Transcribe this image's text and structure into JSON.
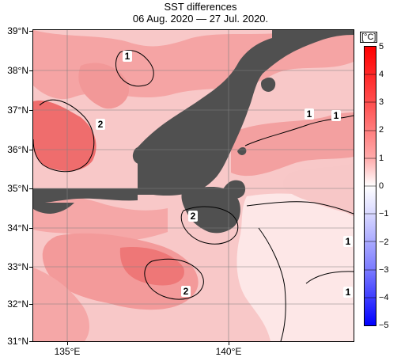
{
  "title": {
    "line1": "SST differences",
    "line2": "06 Aug. 2020 — 27 Jul. 2020."
  },
  "axes": {
    "latitude_labels": [
      "39°N",
      "38°N",
      "37°N",
      "36°N",
      "35°N",
      "34°N",
      "33°N",
      "32°N",
      "31°N"
    ],
    "longitude_labels": [
      "135°E",
      "140°E"
    ]
  },
  "colorbar": {
    "unit": "[°C]",
    "labels": [
      "5",
      "4",
      "3",
      "2",
      "1",
      "0",
      "−1",
      "−2",
      "−3",
      "−4",
      "−5"
    ],
    "colors": {
      "high": "#ff0000",
      "mid_high": "#ff6b6b",
      "low_positive": "#ffd7d7",
      "neutral": "#ffffff",
      "low_negative": "#d8d8ff",
      "mid_low": "#8d8dff",
      "low": "#0000ff"
    }
  },
  "map": {
    "land_color": "#505050",
    "ocean_base_color": "#f7c1c1",
    "contour_labels": [
      "1",
      "2",
      "1",
      "1",
      "2",
      "1",
      "2",
      "1"
    ]
  }
}
